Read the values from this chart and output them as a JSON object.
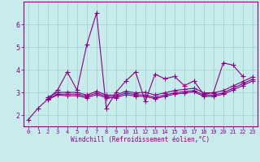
{
  "background_color": "#c8ecec",
  "grid_color": "#a8d8d8",
  "line_color": "#880088",
  "marker": "+",
  "x_labels": [
    "0",
    "1",
    "2",
    "3",
    "4",
    "5",
    "6",
    "7",
    "8",
    "9",
    "10",
    "11",
    "12",
    "13",
    "14",
    "15",
    "16",
    "17",
    "18",
    "19",
    "20",
    "21",
    "22",
    "23"
  ],
  "xlabel": "Windchill (Refroidissement éolien,°C)",
  "ylim": [
    1.5,
    7.0
  ],
  "xlim": [
    -0.5,
    23.5
  ],
  "yticks": [
    2,
    3,
    4,
    5,
    6
  ],
  "line1": [
    1.8,
    2.3,
    2.7,
    3.1,
    3.9,
    3.1,
    5.1,
    6.5,
    2.3,
    3.0,
    3.5,
    3.9,
    2.6,
    3.8,
    3.6,
    3.7,
    3.3,
    3.5,
    2.9,
    3.0,
    4.3,
    4.2,
    3.7,
    null
  ],
  "line2": [
    null,
    null,
    2.78,
    3.0,
    3.0,
    3.0,
    2.88,
    3.05,
    2.88,
    2.88,
    3.05,
    2.98,
    3.0,
    2.88,
    2.98,
    3.08,
    3.13,
    3.18,
    2.98,
    2.98,
    3.08,
    3.28,
    3.48,
    3.68
  ],
  "line3": [
    null,
    null,
    2.72,
    2.92,
    2.92,
    2.92,
    2.82,
    2.97,
    2.82,
    2.82,
    2.97,
    2.9,
    2.88,
    2.78,
    2.88,
    2.98,
    3.03,
    3.08,
    2.88,
    2.88,
    2.98,
    3.18,
    3.38,
    3.58
  ],
  "line4": [
    null,
    null,
    2.68,
    2.88,
    2.85,
    2.85,
    2.76,
    2.9,
    2.76,
    2.76,
    2.9,
    2.83,
    2.82,
    2.72,
    2.82,
    2.92,
    2.97,
    3.02,
    2.82,
    2.82,
    2.92,
    3.1,
    3.3,
    3.5
  ]
}
